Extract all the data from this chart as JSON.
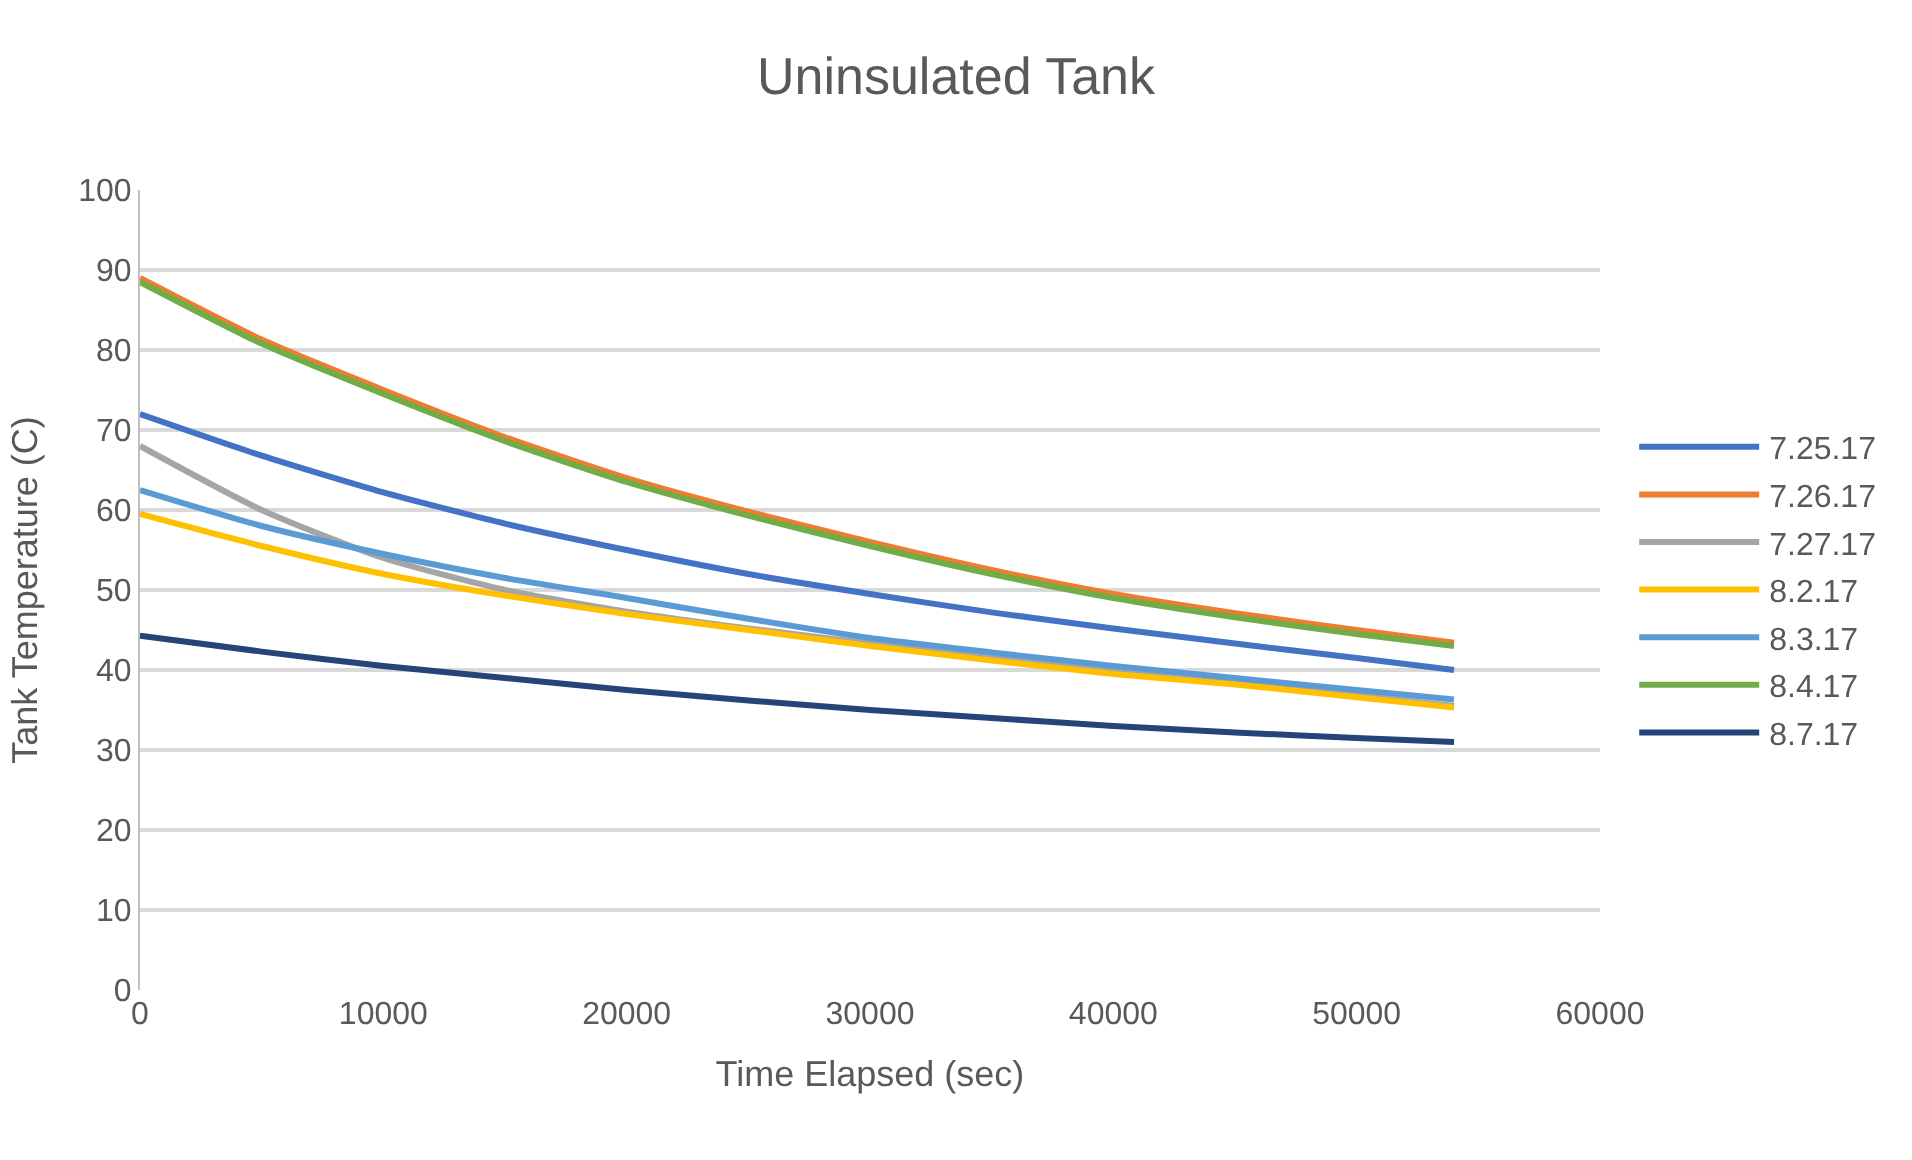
{
  "chart_data": {
    "type": "line",
    "title": "Uninsulated Tank",
    "xlabel": "Time Elapsed (sec)",
    "ylabel": "Tank Temperature (C)",
    "x": [
      0,
      5000,
      10000,
      15000,
      20000,
      25000,
      30000,
      35000,
      40000,
      45000,
      50000,
      54000
    ],
    "series": [
      {
        "name": "7.25.17",
        "color": "#4472c4",
        "values": [
          72,
          66.8,
          62.2,
          58.3,
          55,
          52,
          49.5,
          47.2,
          45.2,
          43.3,
          41.5,
          40
        ]
      },
      {
        "name": "7.26.17",
        "color": "#ed7d31",
        "values": [
          89,
          81.3,
          75,
          69.1,
          64,
          59.8,
          56,
          52.5,
          49.5,
          47.1,
          45,
          43.4
        ]
      },
      {
        "name": "7.27.17",
        "color": "#a5a5a5",
        "values": [
          68,
          60,
          54,
          50,
          47.3,
          45.2,
          43.3,
          41.5,
          39.8,
          38.3,
          36.8,
          35.5
        ]
      },
      {
        "name": "8.2.17",
        "color": "#ffc000",
        "values": [
          59.5,
          55.5,
          52,
          49.3,
          47,
          45,
          43,
          41.2,
          39.5,
          38.2,
          36.6,
          35.3
        ]
      },
      {
        "name": "8.3.17",
        "color": "#5b9bd5",
        "values": [
          62.5,
          58,
          54.5,
          51.5,
          49,
          46.4,
          44,
          42.2,
          40.5,
          39,
          37.5,
          36.3
        ]
      },
      {
        "name": "8.4.17",
        "color": "#70ad47",
        "values": [
          88.5,
          80.8,
          74.5,
          68.6,
          63.5,
          59.3,
          55.5,
          52,
          49,
          46.6,
          44.5,
          43
        ]
      },
      {
        "name": "8.7.17",
        "color": "#264478",
        "values": [
          44.3,
          42.3,
          40.5,
          39,
          37.5,
          36.2,
          35,
          34,
          33,
          32.2,
          31.5,
          31
        ]
      }
    ],
    "xlim": [
      0,
      60000
    ],
    "xticks": [
      0,
      10000,
      20000,
      30000,
      40000,
      50000,
      60000
    ],
    "ylim": [
      0,
      100
    ],
    "yticks": [
      0,
      10,
      20,
      30,
      40,
      50,
      60,
      70,
      80,
      90,
      100
    ],
    "grid": "y",
    "legend": "right",
    "marker": "none",
    "line_style": "solid"
  }
}
